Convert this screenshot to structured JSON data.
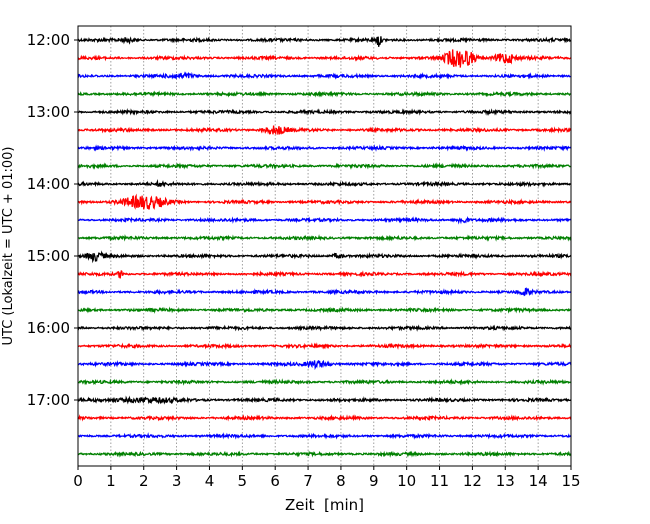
{
  "chart_data": {
    "type": "line",
    "title": "",
    "xlabel": "Zeit  [min]",
    "ylabel": "UTC (Lokalzeit = UTC + 01:00)",
    "xlim": [
      0,
      15
    ],
    "x_ticks": [
      "0",
      "1",
      "2",
      "3",
      "4",
      "5",
      "6",
      "7",
      "8",
      "9",
      "10",
      "11",
      "12",
      "13",
      "14",
      "15"
    ],
    "y_ticks": [
      "12:00",
      "13:00",
      "14:00",
      "15:00",
      "16:00",
      "17:00"
    ],
    "grid": "vertical dotted at each minute",
    "trace_interval_min": 15,
    "trace_count": 24,
    "colors": [
      "#000000",
      "#ff0000",
      "#0000ff",
      "#008000"
    ],
    "events": [
      {
        "trace": 0,
        "minute": 9.15,
        "amplitude": 7,
        "duration": 0.08
      },
      {
        "trace": 0,
        "minute": 1.5,
        "amplitude": 2,
        "duration": 0.3
      },
      {
        "trace": 1,
        "minute": 11.35,
        "amplitude": 5,
        "duration": 0.3
      },
      {
        "trace": 1,
        "minute": 11.75,
        "amplitude": 8,
        "duration": 0.4
      },
      {
        "trace": 1,
        "minute": 13.0,
        "amplitude": 5,
        "duration": 0.4
      },
      {
        "trace": 2,
        "minute": 3.2,
        "amplitude": 2,
        "duration": 0.5
      },
      {
        "trace": 5,
        "minute": 6.0,
        "amplitude": 4,
        "duration": 0.4
      },
      {
        "trace": 8,
        "minute": 2.5,
        "amplitude": 3,
        "duration": 0.1
      },
      {
        "trace": 9,
        "minute": 2.0,
        "amplitude": 6,
        "duration": 0.8
      },
      {
        "trace": 10,
        "minute": 11.7,
        "amplitude": 3,
        "duration": 0.2
      },
      {
        "trace": 12,
        "minute": 0.5,
        "amplitude": 4,
        "duration": 0.3
      },
      {
        "trace": 12,
        "minute": 7.9,
        "amplitude": 2,
        "duration": 0.2
      },
      {
        "trace": 13,
        "minute": 1.3,
        "amplitude": 4,
        "duration": 0.1
      },
      {
        "trace": 14,
        "minute": 13.6,
        "amplitude": 3,
        "duration": 0.2
      },
      {
        "trace": 18,
        "minute": 7.3,
        "amplitude": 3,
        "duration": 0.4
      },
      {
        "trace": 20,
        "minute": 2.0,
        "amplitude": 2,
        "duration": 1.2
      }
    ]
  }
}
